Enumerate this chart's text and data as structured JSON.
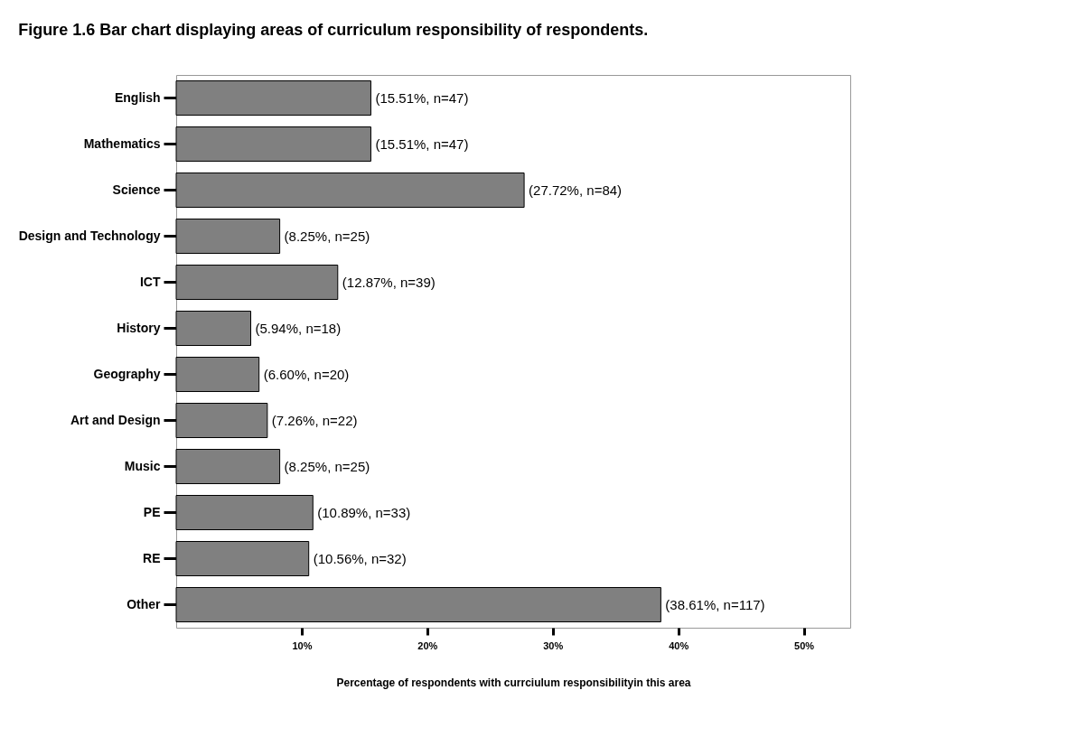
{
  "chart_data": {
    "type": "bar",
    "orientation": "horizontal",
    "title": "Figure 1.6 Bar chart displaying areas of curriculum responsibility of respondents.",
    "xlabel": "Percentage of respondents with currciulum responsibilityin this area",
    "categories": [
      "English",
      "Mathematics",
      "Science",
      "Design and Technology",
      "ICT",
      "History",
      "Geography",
      "Art and Design",
      "Music",
      "PE",
      "RE",
      "Other"
    ],
    "values": [
      15.51,
      15.51,
      27.72,
      8.25,
      12.87,
      5.94,
      6.6,
      7.26,
      8.25,
      10.89,
      10.56,
      38.61
    ],
    "value_labels": [
      "(15.51%, n=47)",
      "(15.51%, n=47)",
      "(27.72%, n=84)",
      "(8.25%, n=25)",
      "(12.87%, n=39)",
      "(5.94%, n=18)",
      "(6.60%, n=20)",
      "(7.26%, n=22)",
      "(8.25%, n=25)",
      "(10.89%, n=33)",
      "(10.56%, n=32)",
      "(38.61%, n=117)"
    ],
    "color": "#808080",
    "xlim": [
      0,
      53.7
    ],
    "xticks": [
      {
        "value": 10,
        "label": "10%"
      },
      {
        "value": 20,
        "label": "20%"
      },
      {
        "value": 30,
        "label": "30%"
      },
      {
        "value": 40,
        "label": "40%"
      },
      {
        "value": 50,
        "label": "50%"
      }
    ],
    "grid": false
  }
}
